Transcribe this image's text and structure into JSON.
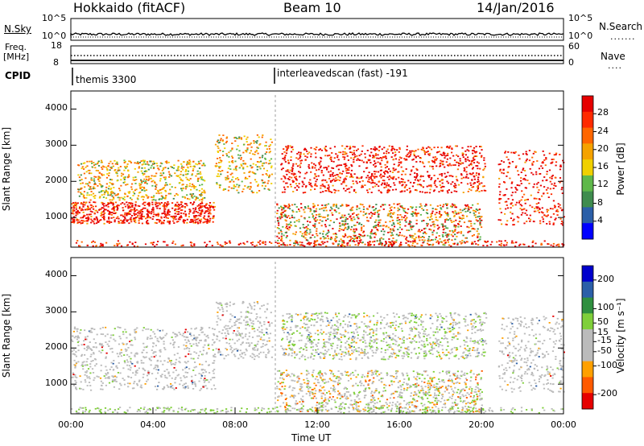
{
  "header": {
    "radar": "Hokkaido (fitACF)",
    "beam": "Beam 10",
    "date": "14/Jan/2016"
  },
  "top_panels": {
    "nsky_label": "N.Sky",
    "nsearch_label": "N.Search",
    "noise_ticks": [
      "10^5",
      "10^0"
    ],
    "freq_label": "Freq.",
    "freq_unit": "[MHz]",
    "freq_ticks": [
      "18",
      "8"
    ],
    "nave_label": "Nave",
    "nave_ticks": [
      "60",
      "0"
    ],
    "cpid_label": "CPID",
    "cpid_entries": [
      {
        "text": "themis 3300",
        "start": "00:00"
      },
      {
        "text": "interleavedscan (fast) -191",
        "start": "10:00"
      }
    ]
  },
  "colors": {
    "power": [
      "#0000ff",
      "#2b5fa8",
      "#3f8c4e",
      "#5fb84a",
      "#f0d000",
      "#f5a200",
      "#ff6600",
      "#ff2a00",
      "#e60000"
    ],
    "velocity": [
      "#e60000",
      "#ff5a00",
      "#ffa000",
      "#bbbbbb",
      "#bbbbbb",
      "#7fcf3a",
      "#2f8f3f",
      "#2b5fa8",
      "#0000cc"
    ]
  },
  "chart_data": [
    {
      "type": "heatmap",
      "title": "",
      "xlabel": "",
      "ylabel": "Slant Range [km]",
      "x_range": [
        "00:00",
        "24:00"
      ],
      "ylim": [
        180,
        4500
      ],
      "yticks": [
        "1000",
        "2000",
        "3000",
        "4000"
      ],
      "colorbar": {
        "label": "Power [dB]",
        "ticks": [
          "4",
          "8",
          "12",
          "16",
          "20",
          "24",
          "28"
        ],
        "range": [
          0,
          32
        ]
      },
      "scatter_regions": [
        {
          "t_start": 0.0,
          "t_end": 7.0,
          "range_km": [
            850,
            1450
          ],
          "level": "high"
        },
        {
          "t_start": 0.3,
          "t_end": 6.5,
          "range_km": [
            1500,
            2600
          ],
          "level": "medium"
        },
        {
          "t_start": 7.0,
          "t_end": 9.8,
          "range_km": [
            1700,
            3300
          ],
          "level": "medium"
        },
        {
          "t_start": 10.2,
          "t_end": 20.2,
          "range_km": [
            1700,
            3000
          ],
          "level": "high"
        },
        {
          "t_start": 10.0,
          "t_end": 20.0,
          "range_km": [
            250,
            1400
          ],
          "level": "mixed"
        },
        {
          "t_start": 20.8,
          "t_end": 24.0,
          "range_km": [
            800,
            2900
          ],
          "level": "high"
        }
      ]
    },
    {
      "type": "heatmap",
      "title": "",
      "xlabel": "Time UT",
      "ylabel": "Slant Range [km]",
      "x_ticks": [
        "00:00",
        "04:00",
        "08:00",
        "12:00",
        "16:00",
        "20:00",
        "00:00"
      ],
      "ylim": [
        180,
        4500
      ],
      "yticks": [
        "1000",
        "2000",
        "3000",
        "4000"
      ],
      "colorbar": {
        "label": "Velocity [m s⁻¹]",
        "ticks": [
          "200",
          "100",
          "50",
          "15",
          "-15",
          "-50",
          "-100",
          "-200"
        ],
        "range": [
          -250,
          250
        ]
      },
      "scatter_regions": [
        {
          "t_start": 0.0,
          "t_end": 7.0,
          "range_km": [
            850,
            2600
          ],
          "level": "near-zero"
        },
        {
          "t_start": 7.0,
          "t_end": 9.8,
          "range_km": [
            1700,
            3300
          ],
          "level": "near-zero"
        },
        {
          "t_start": 10.2,
          "t_end": 20.2,
          "range_km": [
            1700,
            3000
          ],
          "level": "positive-small"
        },
        {
          "t_start": 10.0,
          "t_end": 20.0,
          "range_km": [
            250,
            1400
          ],
          "level": "mixed"
        },
        {
          "t_start": 20.8,
          "t_end": 24.0,
          "range_km": [
            800,
            2900
          ],
          "level": "near-zero"
        }
      ]
    }
  ]
}
